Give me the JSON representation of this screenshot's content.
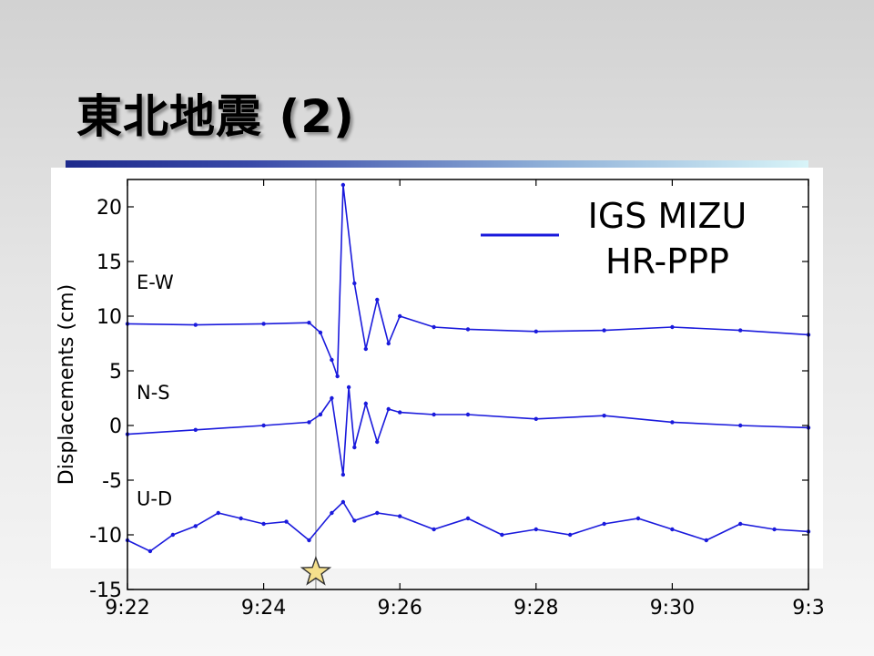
{
  "slide": {
    "title": "東北地震 (2)"
  },
  "colors": {
    "series": "#1a1adc",
    "frame": "#000000",
    "star_fill": "#f5e08c",
    "star_stroke": "#333333"
  },
  "chart_data": {
    "type": "line",
    "ylabel": "Displacements (cm)",
    "xlabel": "",
    "ylim": [
      -15,
      22.5
    ],
    "xlim": [
      "9:22",
      "9:32"
    ],
    "x_tick_labels": [
      "9:22",
      "9:24",
      "9:26",
      "9:28",
      "9:30",
      "9:3"
    ],
    "y_ticks": [
      -15,
      -10,
      -5,
      0,
      5,
      10,
      15,
      20
    ],
    "y_tick_labels": [
      "-15",
      "-10",
      "-5",
      "0",
      "5",
      "10",
      "15",
      "20"
    ],
    "marker_time": "9:24:46",
    "legend": {
      "line1": "IGS MIZU",
      "line2": "HR-PPP",
      "position": "top-right"
    },
    "series": [
      {
        "name": "E-W",
        "x": [
          "9:22:00",
          "9:23:00",
          "9:24:00",
          "9:24:40",
          "9:24:50",
          "9:25:00",
          "9:25:05",
          "9:25:10",
          "9:25:20",
          "9:25:30",
          "9:25:40",
          "9:25:50",
          "9:26:00",
          "9:26:30",
          "9:27:00",
          "9:28:00",
          "9:29:00",
          "9:30:00",
          "9:31:00",
          "9:32:00"
        ],
        "values": [
          9.3,
          9.2,
          9.3,
          9.4,
          8.5,
          6.0,
          4.5,
          22.0,
          13.0,
          7.0,
          11.5,
          7.5,
          10.0,
          9.0,
          8.8,
          8.6,
          8.7,
          9.0,
          8.7,
          8.3
        ]
      },
      {
        "name": "N-S",
        "x": [
          "9:22:00",
          "9:23:00",
          "9:24:00",
          "9:24:40",
          "9:24:50",
          "9:25:00",
          "9:25:10",
          "9:25:15",
          "9:25:20",
          "9:25:30",
          "9:25:40",
          "9:25:50",
          "9:26:00",
          "9:26:30",
          "9:27:00",
          "9:28:00",
          "9:29:00",
          "9:30:00",
          "9:31:00",
          "9:32:00"
        ],
        "values": [
          -0.8,
          -0.4,
          0.0,
          0.3,
          1.0,
          2.5,
          -4.5,
          3.5,
          -2.0,
          2.0,
          -1.5,
          1.5,
          1.2,
          1.0,
          1.0,
          0.6,
          0.9,
          0.3,
          0.0,
          -0.2
        ]
      },
      {
        "name": "U-D",
        "x": [
          "9:22:00",
          "9:22:20",
          "9:22:40",
          "9:23:00",
          "9:23:20",
          "9:23:40",
          "9:24:00",
          "9:24:20",
          "9:24:40",
          "9:25:00",
          "9:25:10",
          "9:25:20",
          "9:25:40",
          "9:26:00",
          "9:26:30",
          "9:27:00",
          "9:27:30",
          "9:28:00",
          "9:28:30",
          "9:29:00",
          "9:29:30",
          "9:30:00",
          "9:30:30",
          "9:31:00",
          "9:31:30",
          "9:32:00"
        ],
        "values": [
          -10.5,
          -11.5,
          -10.0,
          -9.2,
          -8.0,
          -8.5,
          -9.0,
          -8.8,
          -10.5,
          -8.0,
          -7.0,
          -8.7,
          -8.0,
          -8.3,
          -9.5,
          -8.5,
          -10.0,
          -9.5,
          -10.0,
          -9.0,
          -8.5,
          -9.5,
          -10.5,
          -9.0,
          -9.5,
          -9.7
        ]
      }
    ]
  }
}
